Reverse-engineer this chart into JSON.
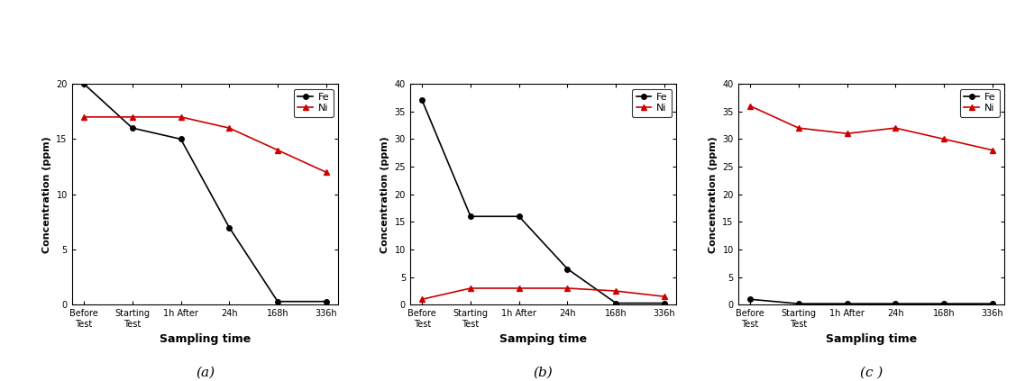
{
  "x_labels": [
    "Before\nTest",
    "Starting\nTest",
    "1h After",
    "24h",
    "168h",
    "336h"
  ],
  "subplot_a": {
    "Fe": [
      20,
      16,
      15,
      7,
      0.3,
      0.3
    ],
    "Ni": [
      17,
      17,
      17,
      16,
      14,
      12
    ],
    "ylim": [
      0,
      20
    ],
    "yticks": [
      0,
      5,
      10,
      15,
      20
    ],
    "xlabel": "Sampling time",
    "ylabel": "Concentration (ppm)",
    "label": "(a)"
  },
  "subplot_b": {
    "Fe": [
      37,
      16,
      16,
      6.5,
      0.3,
      0.3
    ],
    "Ni": [
      1,
      3,
      3,
      3,
      2.5,
      1.5
    ],
    "ylim": [
      0,
      40
    ],
    "yticks": [
      0,
      5,
      10,
      15,
      20,
      25,
      30,
      35,
      40
    ],
    "xlabel": "Samping time",
    "ylabel": "Concentration (ppm)",
    "label": "(b)"
  },
  "subplot_c": {
    "Fe": [
      1,
      0.2,
      0.2,
      0.2,
      0.2,
      0.2
    ],
    "Ni": [
      36,
      32,
      31,
      32,
      30,
      28
    ],
    "ylim": [
      0,
      40
    ],
    "yticks": [
      0,
      5,
      10,
      15,
      20,
      25,
      30,
      35,
      40
    ],
    "xlabel": "Sampling time",
    "ylabel": "Concentration (ppm)",
    "label": "(c )"
  },
  "Fe_color": "#000000",
  "Ni_color": "#cc0000",
  "Fe_marker": "o",
  "Ni_marker": "^",
  "legend_Fe": "Fe",
  "legend_Ni": "Ni",
  "background_color": "#ffffff",
  "fig_width": 11.37,
  "fig_height": 4.23,
  "dpi": 100
}
